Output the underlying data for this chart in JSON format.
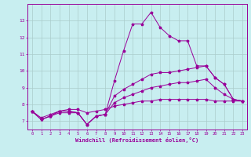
{
  "xlabel": "Windchill (Refroidissement éolien,°C)",
  "background_color": "#c8eef0",
  "line_color": "#990099",
  "grid_color": "#aacccc",
  "xlim": [
    -0.5,
    23.5
  ],
  "ylim": [
    6.5,
    14.0
  ],
  "xticks": [
    0,
    1,
    2,
    3,
    4,
    5,
    6,
    7,
    8,
    9,
    10,
    11,
    12,
    13,
    14,
    15,
    16,
    17,
    18,
    19,
    20,
    21,
    22,
    23
  ],
  "yticks": [
    7,
    8,
    9,
    10,
    11,
    12,
    13
  ],
  "series": [
    [
      7.6,
      7.1,
      7.3,
      7.6,
      7.6,
      7.5,
      6.8,
      7.3,
      7.4,
      9.4,
      11.2,
      12.8,
      12.8,
      13.5,
      12.6,
      12.1,
      11.8,
      11.8,
      10.3,
      10.3,
      9.6,
      9.2,
      8.3,
      8.2
    ],
    [
      7.6,
      7.1,
      7.3,
      7.6,
      7.6,
      7.5,
      6.8,
      7.3,
      7.4,
      8.5,
      8.9,
      9.2,
      9.5,
      9.8,
      9.9,
      9.9,
      10.0,
      10.1,
      10.2,
      10.3,
      9.6,
      9.2,
      8.3,
      8.2
    ],
    [
      7.6,
      7.1,
      7.3,
      7.5,
      7.5,
      7.5,
      6.8,
      7.3,
      7.4,
      8.1,
      8.4,
      8.6,
      8.8,
      9.0,
      9.1,
      9.2,
      9.3,
      9.3,
      9.4,
      9.5,
      9.0,
      8.6,
      8.3,
      8.2
    ],
    [
      7.6,
      7.2,
      7.4,
      7.6,
      7.7,
      7.7,
      7.5,
      7.6,
      7.7,
      7.9,
      8.0,
      8.1,
      8.2,
      8.2,
      8.3,
      8.3,
      8.3,
      8.3,
      8.3,
      8.3,
      8.2,
      8.2,
      8.2,
      8.2
    ]
  ]
}
